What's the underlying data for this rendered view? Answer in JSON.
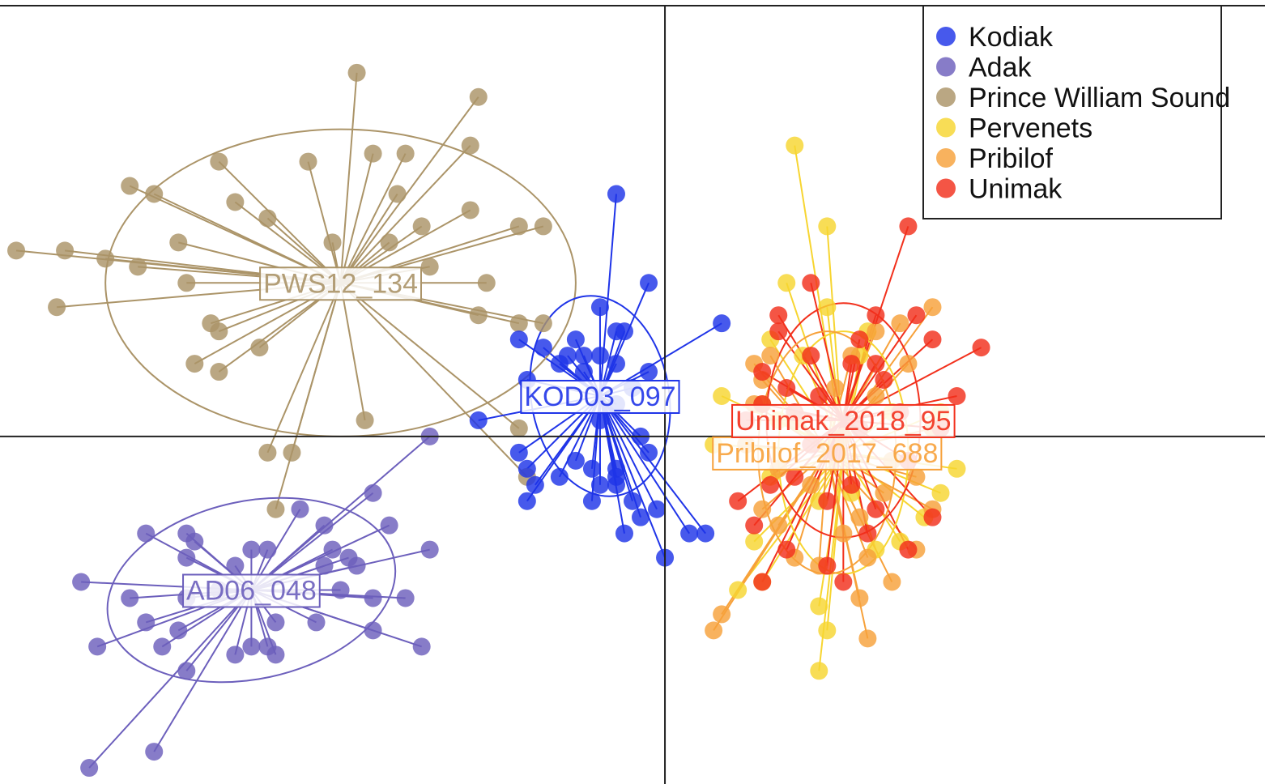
{
  "chart_data": {
    "type": "scatter",
    "title": "",
    "xlabel": "",
    "ylabel": "",
    "xlim": [
      -8.2,
      7.4
    ],
    "ylim": [
      -4.3,
      5.4
    ],
    "grid": false,
    "axes_lines": {
      "x": 0,
      "y": 0
    },
    "legend_position": "top-right",
    "legend": [
      "Kodiak",
      "Adak",
      "Prince William Sound",
      "Pervenets",
      "Pribilof",
      "Unimak"
    ],
    "series": [
      {
        "name": "Prince William Sound",
        "color": "#ab9468",
        "centroid": {
          "x": -4.0,
          "y": 1.9
        },
        "centroid_label": "PWS12_134",
        "ellipse": {
          "rx": 2.9,
          "ry": 1.9,
          "angle": 0
        },
        "points": [
          [
            -3.8,
            4.5
          ],
          [
            -2.3,
            4.2
          ],
          [
            -5.5,
            3.4
          ],
          [
            -4.4,
            3.4
          ],
          [
            -3.6,
            3.5
          ],
          [
            -3.2,
            3.5
          ],
          [
            -2.4,
            3.6
          ],
          [
            -6.6,
            3.1
          ],
          [
            -6.3,
            3.0
          ],
          [
            -5.3,
            2.9
          ],
          [
            -4.9,
            2.7
          ],
          [
            -3.3,
            3.0
          ],
          [
            -2.4,
            2.8
          ],
          [
            -3.0,
            2.6
          ],
          [
            -1.8,
            2.6
          ],
          [
            -1.5,
            2.6
          ],
          [
            -8.0,
            2.3
          ],
          [
            -7.4,
            2.3
          ],
          [
            -6.9,
            2.2
          ],
          [
            -6.5,
            2.1
          ],
          [
            -6.0,
            2.4
          ],
          [
            -4.1,
            2.4
          ],
          [
            -3.4,
            2.4
          ],
          [
            -2.9,
            2.1
          ],
          [
            -5.9,
            1.9
          ],
          [
            -2.2,
            1.9
          ],
          [
            -7.5,
            1.6
          ],
          [
            -5.6,
            1.4
          ],
          [
            -5.5,
            1.3
          ],
          [
            -5.0,
            1.1
          ],
          [
            -2.3,
            1.5
          ],
          [
            -1.8,
            1.4
          ],
          [
            -1.5,
            1.4
          ],
          [
            -5.8,
            0.9
          ],
          [
            -5.5,
            0.8
          ],
          [
            -3.7,
            0.2
          ],
          [
            -1.8,
            0.1
          ],
          [
            -4.9,
            -0.2
          ],
          [
            -4.6,
            -0.2
          ],
          [
            -1.7,
            -0.5
          ],
          [
            -4.8,
            -0.9
          ]
        ]
      },
      {
        "name": "Adak",
        "color": "#6c5fbc",
        "centroid": {
          "x": -5.1,
          "y": -1.9
        },
        "centroid_label": "AD06_048",
        "ellipse": {
          "rx": 1.8,
          "ry": 1.1,
          "angle": -12
        },
        "points": [
          [
            -2.9,
            0.0
          ],
          [
            -3.6,
            -0.7
          ],
          [
            -4.5,
            -0.9
          ],
          [
            -4.2,
            -1.1
          ],
          [
            -6.4,
            -1.2
          ],
          [
            -5.9,
            -1.2
          ],
          [
            -5.8,
            -1.3
          ],
          [
            -3.4,
            -1.1
          ],
          [
            -5.1,
            -1.4
          ],
          [
            -4.9,
            -1.4
          ],
          [
            -4.1,
            -1.4
          ],
          [
            -3.9,
            -1.5
          ],
          [
            -2.9,
            -1.4
          ],
          [
            -5.9,
            -1.5
          ],
          [
            -5.3,
            -1.6
          ],
          [
            -4.2,
            -1.6
          ],
          [
            -3.8,
            -1.6
          ],
          [
            -7.2,
            -1.8
          ],
          [
            -6.6,
            -2.0
          ],
          [
            -5.9,
            -2.0
          ],
          [
            -5.5,
            -1.9
          ],
          [
            -4.0,
            -1.9
          ],
          [
            -3.6,
            -2.0
          ],
          [
            -3.2,
            -2.0
          ],
          [
            -6.0,
            -2.4
          ],
          [
            -4.8,
            -2.3
          ],
          [
            -4.3,
            -2.3
          ],
          [
            -6.4,
            -2.3
          ],
          [
            -3.6,
            -2.4
          ],
          [
            -6.2,
            -2.6
          ],
          [
            -5.1,
            -2.6
          ],
          [
            -7.0,
            -2.6
          ],
          [
            -3.0,
            -2.6
          ],
          [
            -5.3,
            -2.7
          ],
          [
            -4.9,
            -2.6
          ],
          [
            -4.8,
            -2.7
          ],
          [
            -5.9,
            -2.9
          ],
          [
            -6.3,
            -3.9
          ],
          [
            -7.1,
            -4.1
          ]
        ]
      },
      {
        "name": "Kodiak",
        "color": "#1f34e8",
        "centroid": {
          "x": -0.8,
          "y": 0.5
        },
        "centroid_label": "KOD03_097",
        "ellipse": {
          "rx": 0.85,
          "ry": 1.25,
          "angle": -10
        },
        "points": [
          [
            -0.6,
            3.0
          ],
          [
            -0.2,
            1.9
          ],
          [
            -0.8,
            1.6
          ],
          [
            -0.6,
            1.3
          ],
          [
            0.7,
            1.4
          ],
          [
            -0.5,
            1.3
          ],
          [
            -1.1,
            1.2
          ],
          [
            -1.8,
            1.2
          ],
          [
            -1.5,
            1.1
          ],
          [
            -1.2,
            1.0
          ],
          [
            -1.0,
            1.0
          ],
          [
            -0.8,
            1.0
          ],
          [
            -0.6,
            0.9
          ],
          [
            -1.3,
            0.9
          ],
          [
            -1.0,
            0.8
          ],
          [
            -0.2,
            0.8
          ],
          [
            -1.7,
            0.7
          ],
          [
            -0.4,
            0.6
          ],
          [
            -0.6,
            0.4
          ],
          [
            -2.3,
            0.2
          ],
          [
            -0.8,
            0.2
          ],
          [
            -0.3,
            0.0
          ],
          [
            -1.8,
            -0.2
          ],
          [
            -1.1,
            -0.3
          ],
          [
            -0.9,
            -0.4
          ],
          [
            -0.2,
            -0.2
          ],
          [
            -0.6,
            -0.4
          ],
          [
            -0.6,
            -0.5
          ],
          [
            -1.3,
            -0.5
          ],
          [
            -0.8,
            -0.6
          ],
          [
            -0.6,
            -0.6
          ],
          [
            -1.7,
            -0.8
          ],
          [
            -0.9,
            -0.8
          ],
          [
            -0.4,
            -0.8
          ],
          [
            -0.1,
            -0.9
          ],
          [
            -0.3,
            -1.0
          ],
          [
            -0.5,
            -1.2
          ],
          [
            0.3,
            -1.2
          ],
          [
            0.5,
            -1.2
          ],
          [
            0.0,
            -1.5
          ],
          [
            -1.6,
            -0.6
          ],
          [
            -1.7,
            -0.4
          ]
        ]
      },
      {
        "name": "Pervenets",
        "color": "#f7d531",
        "centroid": {
          "x": 2.2,
          "y": -0.2
        },
        "centroid_label": "",
        "ellipse": {
          "rx": 0.8,
          "ry": 1.5,
          "angle": 0
        },
        "points": [
          [
            1.6,
            3.6
          ],
          [
            2.0,
            2.6
          ],
          [
            1.5,
            1.9
          ],
          [
            2.0,
            1.6
          ],
          [
            1.3,
            1.2
          ],
          [
            2.5,
            1.3
          ],
          [
            1.7,
            1.0
          ],
          [
            2.4,
            1.0
          ],
          [
            0.7,
            0.5
          ],
          [
            1.2,
            0.4
          ],
          [
            1.4,
            0.2
          ],
          [
            2.8,
            0.3
          ],
          [
            3.4,
            0.3
          ],
          [
            0.6,
            -0.1
          ],
          [
            1.3,
            -0.5
          ],
          [
            3.6,
            -0.4
          ],
          [
            1.9,
            -0.8
          ],
          [
            2.3,
            -0.7
          ],
          [
            3.2,
            -1.0
          ],
          [
            3.4,
            -0.7
          ],
          [
            1.1,
            -1.3
          ],
          [
            2.6,
            -1.4
          ],
          [
            0.9,
            -1.9
          ],
          [
            1.9,
            -2.1
          ],
          [
            2.9,
            -1.3
          ],
          [
            1.2,
            -1.8
          ],
          [
            2.0,
            -2.4
          ],
          [
            1.9,
            -2.9
          ]
        ]
      },
      {
        "name": "Pribilof",
        "color": "#f7a13a",
        "centroid": {
          "x": 2.0,
          "y": -0.2
        },
        "centroid_label": "Pribilof_2017_688",
        "ellipse": {
          "rx": 0.85,
          "ry": 1.5,
          "angle": 0
        },
        "points": [
          [
            3.3,
            1.6
          ],
          [
            2.9,
            1.4
          ],
          [
            2.6,
            1.3
          ],
          [
            1.3,
            1.0
          ],
          [
            2.3,
            1.0
          ],
          [
            1.1,
            0.9
          ],
          [
            3.0,
            0.9
          ],
          [
            1.2,
            0.7
          ],
          [
            2.1,
            0.6
          ],
          [
            2.6,
            0.5
          ],
          [
            1.1,
            0.4
          ],
          [
            1.6,
            0.2
          ],
          [
            3.3,
            0.1
          ],
          [
            1.0,
            -0.1
          ],
          [
            2.2,
            0.0
          ],
          [
            2.8,
            -0.3
          ],
          [
            1.4,
            -0.4
          ],
          [
            3.1,
            -0.5
          ],
          [
            1.8,
            -0.6
          ],
          [
            2.7,
            -0.7
          ],
          [
            1.2,
            -0.9
          ],
          [
            3.3,
            -0.9
          ],
          [
            2.4,
            -1.0
          ],
          [
            1.4,
            -1.1
          ],
          [
            2.2,
            -1.2
          ],
          [
            3.1,
            -1.4
          ],
          [
            1.6,
            -1.5
          ],
          [
            2.5,
            -1.5
          ],
          [
            1.9,
            -1.6
          ],
          [
            2.8,
            -1.8
          ],
          [
            0.7,
            -2.2
          ],
          [
            2.4,
            -2.0
          ],
          [
            2.5,
            -2.5
          ],
          [
            0.6,
            -2.4
          ]
        ]
      },
      {
        "name": "Unimak",
        "color": "#f2301c",
        "centroid": {
          "x": 2.2,
          "y": 0.2
        },
        "centroid_label": "Unimak_2018_95",
        "ellipse": {
          "rx": 0.95,
          "ry": 1.45,
          "angle": 0
        },
        "points": [
          [
            3.0,
            2.6
          ],
          [
            1.8,
            1.9
          ],
          [
            1.4,
            1.5
          ],
          [
            2.6,
            1.5
          ],
          [
            3.1,
            1.5
          ],
          [
            1.4,
            1.3
          ],
          [
            2.4,
            1.2
          ],
          [
            3.3,
            1.2
          ],
          [
            3.9,
            1.1
          ],
          [
            1.8,
            1.0
          ],
          [
            2.3,
            0.9
          ],
          [
            2.6,
            0.9
          ],
          [
            1.2,
            0.8
          ],
          [
            2.7,
            0.7
          ],
          [
            1.5,
            0.6
          ],
          [
            1.9,
            0.5
          ],
          [
            3.6,
            0.5
          ],
          [
            1.2,
            0.4
          ],
          [
            1.6,
            0.3
          ],
          [
            2.9,
            0.3
          ],
          [
            3.4,
            0.1
          ],
          [
            1.0,
            0.2
          ],
          [
            2.4,
            0.1
          ],
          [
            1.8,
            -0.1
          ],
          [
            2.1,
            -0.2
          ],
          [
            3.0,
            -0.3
          ],
          [
            1.3,
            -0.6
          ],
          [
            1.6,
            -0.5
          ],
          [
            2.3,
            -0.6
          ],
          [
            0.9,
            -0.8
          ],
          [
            2.0,
            -0.8
          ],
          [
            2.6,
            -0.9
          ],
          [
            3.3,
            -1.0
          ],
          [
            1.1,
            -1.1
          ],
          [
            2.5,
            -1.2
          ],
          [
            3.0,
            -1.4
          ],
          [
            1.5,
            -1.4
          ],
          [
            2.0,
            -1.6
          ],
          [
            1.2,
            -1.8
          ],
          [
            2.2,
            -1.8
          ]
        ]
      }
    ]
  }
}
